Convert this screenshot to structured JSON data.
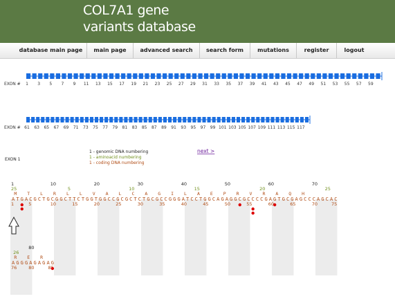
{
  "header": {
    "title_line1": "COL7A1 gene",
    "title_line2": "variants database"
  },
  "nav": [
    {
      "label": "database main page"
    },
    {
      "label": "main page"
    },
    {
      "label": "advanced search"
    },
    {
      "label": "search form"
    },
    {
      "label": "mutations"
    },
    {
      "label": "register"
    },
    {
      "label": "logout"
    }
  ],
  "exon_map": {
    "label": "EXON #",
    "row1_labels": [
      "1",
      "3",
      "5",
      "7",
      "9",
      "11",
      "13",
      "15",
      "17",
      "19",
      "21",
      "23",
      "25",
      "27",
      "29",
      "31",
      "33",
      "35",
      "37",
      "39",
      "41",
      "43",
      "45",
      "47",
      "49",
      "51",
      "53",
      "55",
      "57",
      "59"
    ],
    "row2_labels": [
      "61",
      "63",
      "65",
      "67",
      "69",
      "71",
      "73",
      "75",
      "77",
      "79",
      "81",
      "83",
      "85",
      "87",
      "89",
      "91",
      "93",
      "95",
      "97",
      "99",
      "101",
      "103",
      "105",
      "107",
      "109",
      "111",
      "113",
      "115",
      "117"
    ],
    "block_color": "#1a6de0"
  },
  "legend": {
    "genomic": "1 - genomic DNA numbering",
    "aminoacid": "1 - aminoacid numbering",
    "coding": "1 - coding DNA numbering"
  },
  "next_link": "next >",
  "exon_title": "EXON 1",
  "sequence": {
    "line1": {
      "genomic_ticks": [
        "1",
        "10",
        "20",
        "30",
        "40",
        "50",
        "60",
        "70"
      ],
      "aa_ticks": [
        "25",
        "5",
        "10",
        "15",
        "20",
        "25"
      ],
      "amino_acids": "M T L R L L V A L C A G I L A E P R V R A Q H",
      "dna": "ATGACGCTGCGGCTTCTGGTGGCCGCGCTCTGCGCCGGGATCCTGGCAGAGGCGCCCCGAGTGCGAGCCCAGCAC",
      "coding_ticks": [
        "1",
        "5",
        "10",
        "15",
        "20",
        "25",
        "30",
        "35",
        "40",
        "45",
        "50",
        "55",
        "60",
        "65",
        "70",
        "75"
      ]
    },
    "line2": {
      "genomic_ticks": [
        "80"
      ],
      "aa_ticks": [
        "26"
      ],
      "amino_acids": "R E R",
      "dna": "AGGGAGAGAG",
      "coding_ticks": [
        "76",
        "80",
        "85"
      ]
    },
    "mutation_color": "#dd0000"
  },
  "colors": {
    "header_bg": "#5b7a44",
    "genomic": "#222222",
    "aminoacid": "#6f8f1a",
    "coding": "#b04a12",
    "link": "#6a1b9a"
  }
}
